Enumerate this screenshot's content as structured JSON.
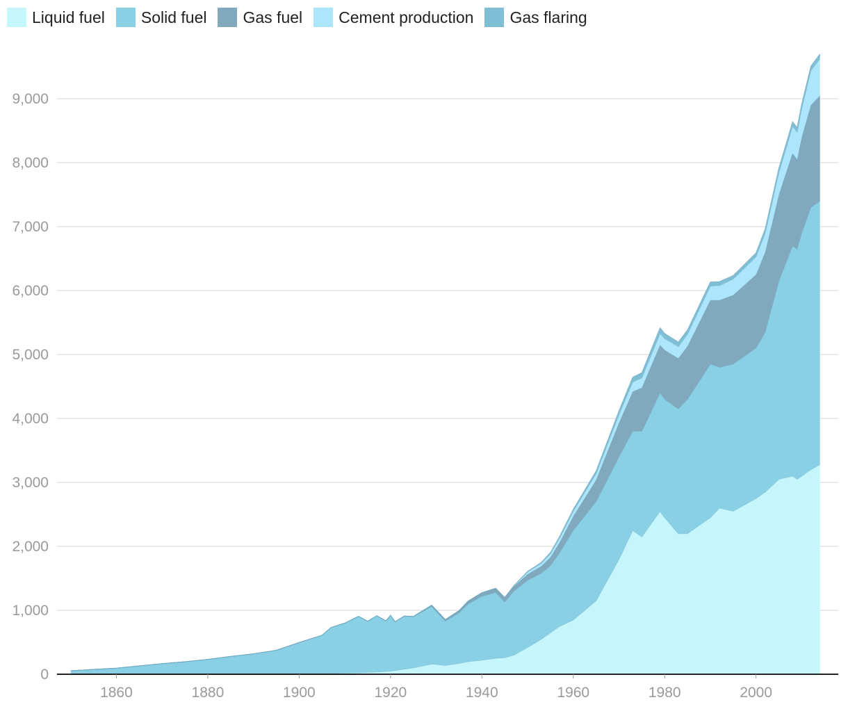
{
  "chart_data": {
    "type": "area",
    "stacked": true,
    "title": "",
    "xlabel": "",
    "ylabel": "",
    "xlim": [
      1847,
      2018
    ],
    "ylim": [
      0,
      10000
    ],
    "x_ticks": [
      1860,
      1880,
      1900,
      1920,
      1940,
      1960,
      1980,
      2000
    ],
    "y_ticks": [
      0,
      1000,
      2000,
      3000,
      4000,
      5000,
      6000,
      7000,
      8000,
      9000
    ],
    "y_tick_labels": [
      "0",
      "1,000",
      "2,000",
      "3,000",
      "4,000",
      "5,000",
      "6,000",
      "7,000",
      "8,000",
      "9,000"
    ],
    "x_tick_labels": [
      "1860",
      "1880",
      "1900",
      "1920",
      "1940",
      "1960",
      "1980",
      "2000"
    ],
    "grid": true,
    "legend_position": "top-left",
    "x": [
      1850,
      1860,
      1870,
      1875,
      1880,
      1885,
      1890,
      1895,
      1900,
      1905,
      1907,
      1910,
      1913,
      1915,
      1917,
      1919,
      1920,
      1921,
      1923,
      1925,
      1929,
      1932,
      1935,
      1937,
      1940,
      1943,
      1945,
      1947,
      1950,
      1953,
      1955,
      1957,
      1960,
      1965,
      1970,
      1973,
      1975,
      1979,
      1980,
      1983,
      1985,
      1990,
      1992,
      1995,
      2000,
      2002,
      2005,
      2008,
      2009,
      2010,
      2012,
      2014
    ],
    "series": [
      {
        "name": "Liquid fuel",
        "color": "#c4f6fc",
        "values": [
          0,
          0,
          1,
          1,
          2,
          3,
          4,
          5,
          6,
          9,
          12,
          20,
          25,
          30,
          35,
          45,
          50,
          60,
          80,
          100,
          160,
          140,
          170,
          200,
          220,
          250,
          260,
          300,
          420,
          550,
          650,
          750,
          850,
          1150,
          1800,
          2250,
          2150,
          2550,
          2450,
          2200,
          2200,
          2450,
          2600,
          2550,
          2750,
          2850,
          3050,
          3100,
          3050,
          3100,
          3200,
          3280
        ]
      },
      {
        "name": "Solid fuel",
        "color": "#89d0e4",
        "values": [
          55,
          95,
          165,
          195,
          230,
          275,
          315,
          370,
          490,
          600,
          720,
          780,
          880,
          800,
          880,
          790,
          870,
          760,
          830,
          800,
          900,
          690,
          790,
          900,
          1000,
          1030,
          870,
          1000,
          1050,
          1030,
          1050,
          1150,
          1400,
          1550,
          1600,
          1550,
          1650,
          1850,
          1850,
          1950,
          2100,
          2400,
          2200,
          2300,
          2350,
          2500,
          3100,
          3600,
          3600,
          3800,
          4100,
          4120
        ]
      },
      {
        "name": "Gas fuel",
        "color": "#80a9be",
        "values": [
          0,
          0,
          0,
          0,
          0,
          0,
          0,
          0,
          0,
          0,
          0,
          0,
          0,
          0,
          0,
          0,
          0,
          0,
          0,
          5,
          20,
          25,
          35,
          45,
          55,
          65,
          70,
          75,
          95,
          110,
          130,
          160,
          220,
          340,
          530,
          620,
          680,
          750,
          770,
          790,
          830,
          1000,
          1050,
          1080,
          1150,
          1250,
          1350,
          1450,
          1400,
          1500,
          1600,
          1650
        ]
      },
      {
        "name": "Cement production",
        "color": "#ade6fa",
        "values": [
          0,
          0,
          0,
          0,
          0,
          0,
          0,
          0,
          0,
          0,
          0,
          0,
          0,
          0,
          0,
          0,
          0,
          0,
          0,
          0,
          0,
          0,
          0,
          0,
          0,
          0,
          0,
          10,
          35,
          45,
          55,
          70,
          80,
          100,
          130,
          150,
          155,
          180,
          180,
          185,
          190,
          220,
          230,
          250,
          280,
          300,
          350,
          420,
          430,
          450,
          540,
          580
        ]
      },
      {
        "name": "Gas flaring",
        "color": "#7fbfd6",
        "values": [
          0,
          0,
          0,
          0,
          0,
          0,
          0,
          0,
          0,
          0,
          0,
          0,
          0,
          0,
          0,
          0,
          0,
          0,
          0,
          0,
          0,
          0,
          0,
          0,
          0,
          0,
          0,
          0,
          10,
          15,
          20,
          25,
          30,
          40,
          60,
          75,
          80,
          90,
          80,
          70,
          65,
          65,
          60,
          55,
          60,
          65,
          68,
          70,
          70,
          70,
          70,
          70
        ]
      }
    ]
  }
}
